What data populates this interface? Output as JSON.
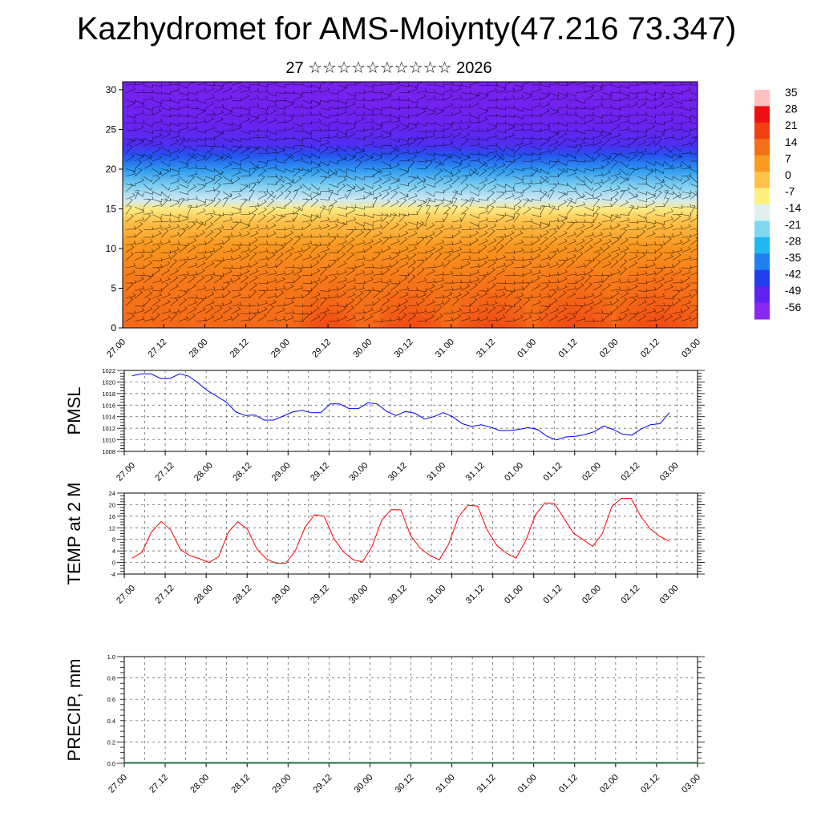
{
  "header": {
    "title": "Kazhydromet for AMS-Moiynty(47.216 73.347)",
    "subtitle": "27 ☆☆☆☆☆☆☆☆☆☆ 2026"
  },
  "chart_data": [
    {
      "type": "heatmap",
      "title": "Vertical cross-section (temperature shading with wind barbs)",
      "xlabel": "",
      "ylabel": "",
      "x_tick_labels": [
        "27.00",
        "27.12",
        "28.00",
        "28.12",
        "29.00",
        "29.12",
        "30.00",
        "30.12",
        "31.00",
        "31.12",
        "01.00",
        "01.12",
        "02.00",
        "02.12",
        "03.00"
      ],
      "y_ticks": [
        0,
        5,
        10,
        15,
        20,
        25,
        30
      ],
      "ylim": [
        0,
        31
      ],
      "colorbar": {
        "labels": [
          "35",
          "28",
          "21",
          "14",
          "7",
          "0",
          "-7",
          "-14",
          "-21",
          "-28",
          "-35",
          "-42",
          "-49",
          "-56"
        ],
        "colors": [
          "#ffc0c0",
          "#ee1010",
          "#f04010",
          "#f47018",
          "#fa9a20",
          "#ffc24a",
          "#fff080",
          "#e0f0f0",
          "#80d8f0",
          "#20b8f0",
          "#2080f0",
          "#2040f0",
          "#6020f0",
          "#8a28f0"
        ]
      },
      "surface_warm_peaks": [
        29.12,
        30.12,
        31.12,
        1.12,
        2.12
      ]
    },
    {
      "type": "line",
      "ylabel": "PMSL",
      "ylim": [
        1008,
        1022
      ],
      "y_ticks": [
        1008,
        1010,
        1012,
        1014,
        1016,
        1018,
        1020,
        1022
      ],
      "x_tick_labels": [
        "27.00",
        "27.12",
        "28.00",
        "28.12",
        "29.00",
        "29.12",
        "30.00",
        "30.12",
        "31.00",
        "31.12",
        "01.00",
        "01.12",
        "02.00",
        "02.12",
        "03.00"
      ],
      "color": "#0000ff",
      "values": [
        1021.1,
        1021.4,
        1021.4,
        1020.6,
        1020.6,
        1021.4,
        1021.0,
        1019.8,
        1018.5,
        1017.5,
        1016.5,
        1014.8,
        1014.2,
        1014.3,
        1013.4,
        1013.4,
        1014.1,
        1014.8,
        1015.1,
        1014.7,
        1014.7,
        1016.2,
        1016.2,
        1015.4,
        1015.4,
        1016.4,
        1016.2,
        1014.9,
        1014.2,
        1014.9,
        1014.6,
        1013.6,
        1014.0,
        1014.7,
        1014.0,
        1012.8,
        1012.3,
        1012.6,
        1012.2,
        1011.6,
        1011.6,
        1011.8,
        1012.1,
        1011.8,
        1010.6,
        1010.0,
        1010.5,
        1010.6,
        1010.9,
        1011.4,
        1012.4,
        1011.8,
        1011.0,
        1010.8,
        1011.9,
        1012.6,
        1012.8,
        1014.7
      ]
    },
    {
      "type": "line",
      "ylabel": "TEMP at 2 M",
      "ylim": [
        -4,
        24
      ],
      "y_ticks": [
        -4,
        0,
        4,
        8,
        12,
        16,
        20,
        24
      ],
      "x_tick_labels": [
        "27.00",
        "27.12",
        "28.00",
        "28.12",
        "29.00",
        "29.12",
        "30.00",
        "30.12",
        "31.00",
        "31.12",
        "01.00",
        "01.12",
        "02.00",
        "02.12",
        "03.00"
      ],
      "color": "#ff0000",
      "values": [
        1.5,
        3.5,
        10.5,
        14.2,
        11.3,
        4.6,
        2.4,
        1.3,
        0.0,
        2.0,
        10.4,
        14.1,
        11.5,
        4.6,
        1.2,
        -0.3,
        -0.3,
        4.1,
        12.1,
        16.5,
        16.0,
        8.3,
        3.7,
        1.0,
        0.2,
        5.6,
        14.6,
        18.3,
        18.2,
        9.4,
        5.0,
        2.5,
        0.9,
        6.5,
        15.8,
        19.8,
        19.5,
        11.2,
        5.9,
        3.2,
        1.5,
        7.4,
        16.3,
        20.6,
        20.4,
        15.3,
        10.1,
        7.9,
        5.6,
        10.0,
        19.4,
        22.2,
        22.2,
        16.0,
        11.6,
        9.0,
        7.3
      ]
    },
    {
      "type": "bar",
      "ylabel": "PRECIP, mm",
      "ylim": [
        0.0,
        1.0
      ],
      "y_ticks": [
        0.0,
        0.2,
        0.4,
        0.6,
        0.8,
        1.0
      ],
      "y_tick_labels": [
        "0.0",
        "0.2",
        "0.4",
        "0.6",
        "0.8",
        "1.0"
      ],
      "x_tick_labels": [
        "27.00",
        "27.12",
        "28.00",
        "28.12",
        "29.00",
        "29.12",
        "30.00",
        "30.12",
        "31.00",
        "31.12",
        "01.00",
        "01.12",
        "02.00",
        "02.12",
        "03.00"
      ],
      "values": [
        0,
        0,
        0,
        0,
        0,
        0,
        0,
        0,
        0,
        0,
        0,
        0,
        0,
        0,
        0
      ]
    }
  ]
}
